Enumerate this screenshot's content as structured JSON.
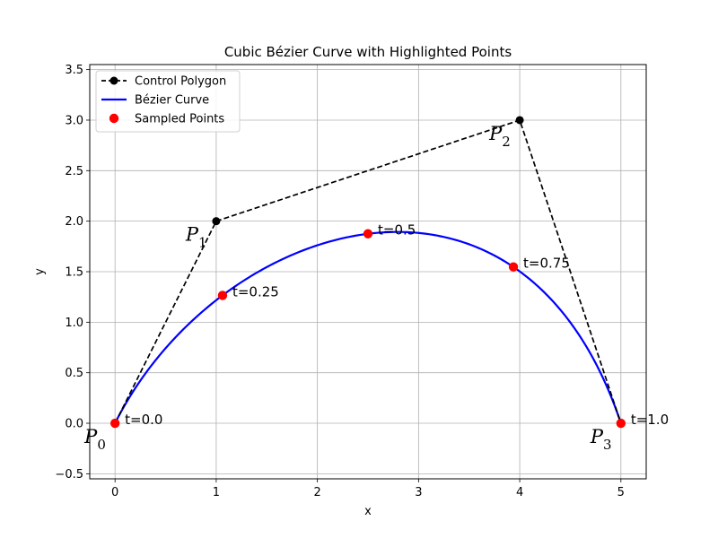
{
  "chart_data": {
    "type": "line",
    "title": "Cubic Bézier Curve with Highlighted Points",
    "xlabel": "x",
    "ylabel": "y",
    "xlim": [
      -0.25,
      5.25
    ],
    "ylim": [
      -0.55,
      3.55
    ],
    "xticks": [
      "0",
      "1",
      "2",
      "3",
      "4",
      "5"
    ],
    "yticks": [
      "−0.5",
      "0.0",
      "0.5",
      "1.0",
      "1.5",
      "2.0",
      "2.5",
      "3.0",
      "3.5"
    ],
    "grid": true,
    "legend_position": "upper-left",
    "control_points": [
      {
        "name": "P",
        "sub": "0",
        "x": 0,
        "y": 0
      },
      {
        "name": "P",
        "sub": "1",
        "x": 1,
        "y": 2
      },
      {
        "name": "P",
        "sub": "2",
        "x": 4,
        "y": 3
      },
      {
        "name": "P",
        "sub": "3",
        "x": 5,
        "y": 0
      }
    ],
    "sampled_points": [
      {
        "label": "t=0.0",
        "x": 0.0,
        "y": 0.0
      },
      {
        "label": "t=0.25",
        "x": 1.0625,
        "y": 1.2656
      },
      {
        "label": "t=0.5",
        "x": 2.5,
        "y": 1.875
      },
      {
        "label": "t=0.75",
        "x": 3.9375,
        "y": 1.5469
      },
      {
        "label": "t=1.0",
        "x": 5.0,
        "y": 0.0
      }
    ],
    "series": [
      {
        "name": "Control Polygon",
        "color": "#000000",
        "style": "dashed-with-markers"
      },
      {
        "name": "Bézier Curve",
        "color": "#0000ff",
        "style": "solid"
      },
      {
        "name": "Sampled Points",
        "color": "#ff0000",
        "style": "markers"
      }
    ]
  }
}
